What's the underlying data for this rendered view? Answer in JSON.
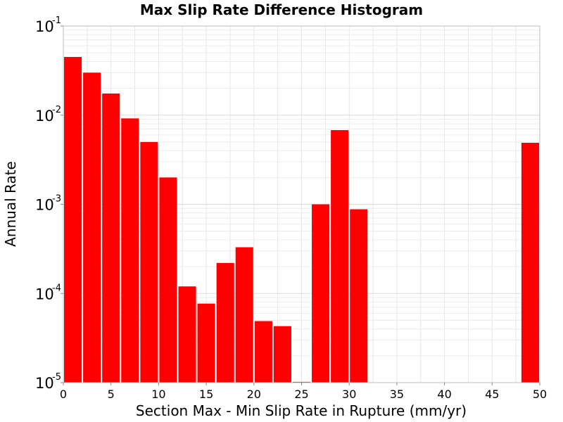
{
  "chart_data": {
    "type": "bar",
    "title": "Max Slip Rate Difference Histogram",
    "xlabel": "Section Max - Min Slip Rate in Rupture (mm/yr)",
    "ylabel": "Annual Rate",
    "x_ticks": [
      "0",
      "5",
      "10",
      "15",
      "20",
      "25",
      "30",
      "35",
      "40",
      "45",
      "50"
    ],
    "y_ticks": [
      {
        "base": "10",
        "exp": "-1"
      },
      {
        "base": "10",
        "exp": "-2"
      },
      {
        "base": "10",
        "exp": "-3"
      },
      {
        "base": "10",
        "exp": "-4"
      },
      {
        "base": "10",
        "exp": "-5"
      }
    ],
    "xlim": [
      0,
      50
    ],
    "ylim": [
      1e-05,
      0.1
    ],
    "yscale": "log",
    "grid": true,
    "bar_color": "#ff0000",
    "bars": [
      {
        "x": 1,
        "value": 0.045
      },
      {
        "x": 3,
        "value": 0.03
      },
      {
        "x": 5,
        "value": 0.0175
      },
      {
        "x": 7,
        "value": 0.0092
      },
      {
        "x": 9,
        "value": 0.005
      },
      {
        "x": 11,
        "value": 0.002
      },
      {
        "x": 13,
        "value": 0.00012
      },
      {
        "x": 15,
        "value": 7.7e-05
      },
      {
        "x": 17,
        "value": 0.00022
      },
      {
        "x": 19,
        "value": 0.00033
      },
      {
        "x": 21,
        "value": 4.9e-05
      },
      {
        "x": 23,
        "value": 4.3e-05
      },
      {
        "x": 25,
        "value": 1.02e-05
      },
      {
        "x": 27,
        "value": 0.001
      },
      {
        "x": 29,
        "value": 0.0068
      },
      {
        "x": 31,
        "value": 0.00088
      },
      {
        "x": 49,
        "value": 0.0049
      }
    ]
  }
}
